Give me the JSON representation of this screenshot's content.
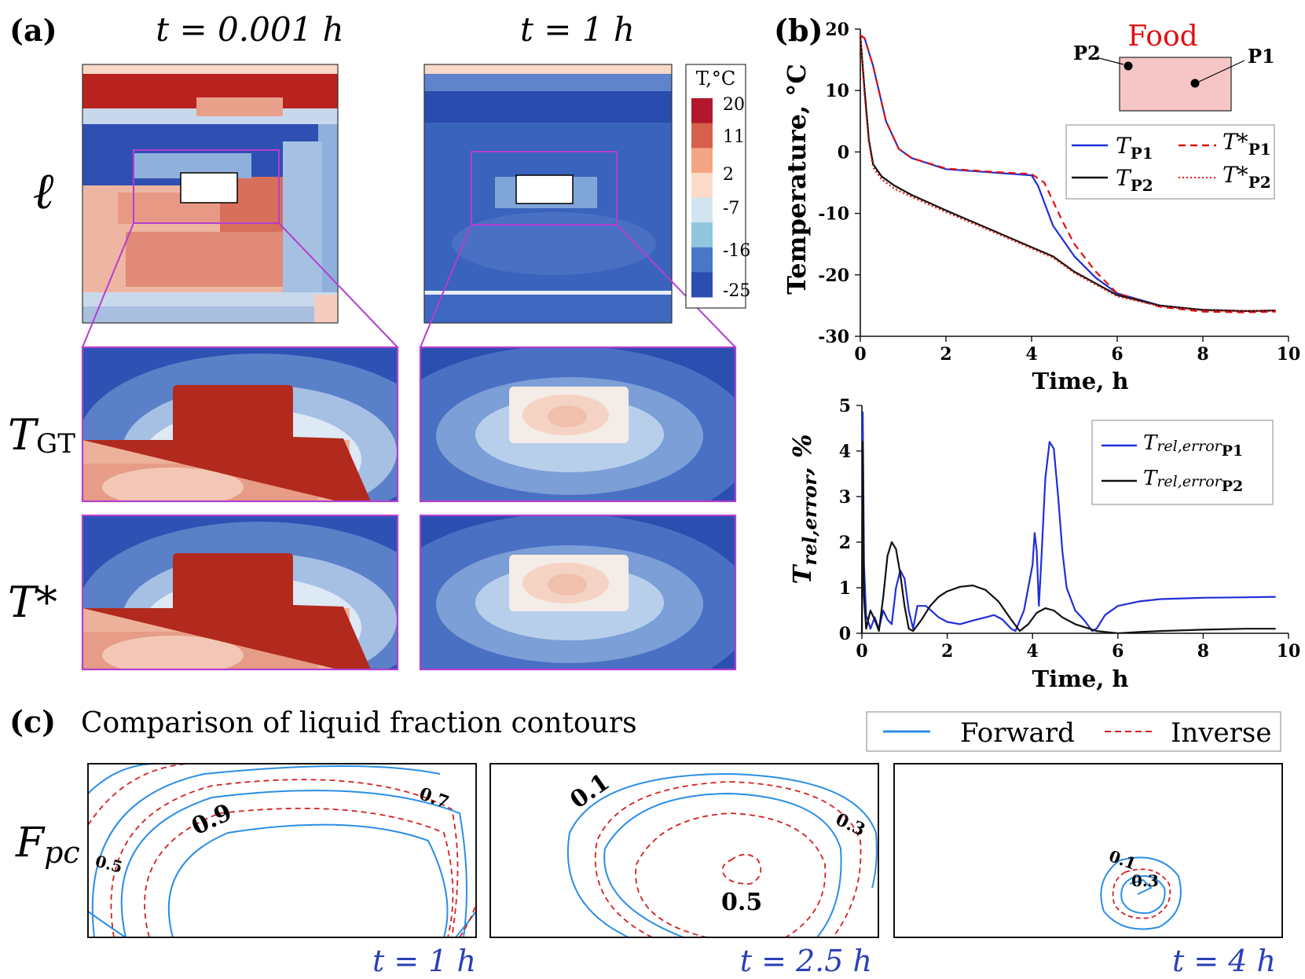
{
  "panel_a": {
    "label": "(a)",
    "time_labels": [
      "t = 0.001 h",
      "t = 1 h"
    ],
    "row_labels": {
      "liquid": "ℓ",
      "gt": "T",
      "gt_sub": "GT",
      "pred": "T*"
    },
    "colorbar": {
      "title": "T,°C",
      "ticks": [
        "20",
        "11",
        "2",
        "-7",
        "-16",
        "-25"
      ],
      "colors": [
        "#b2182b",
        "#d6604d",
        "#f4a582",
        "#fddbc7",
        "#d1e5f0",
        "#92c5de",
        "#4a77c9",
        "#2b4fb0"
      ]
    }
  },
  "panel_b": {
    "label": "(b)",
    "inset": {
      "title": "Food",
      "p1": "P1",
      "p2": "P2",
      "fill": "#f6c6c6"
    },
    "colors": {
      "p1": "#1f2fd8",
      "p2": "#111111",
      "pred": "#e01010"
    }
  },
  "panel_c": {
    "label": "(c)",
    "title": "Comparison of liquid fraction contours",
    "legend": {
      "forward": "Forward",
      "inverse": "Inverse"
    },
    "ylabel": "F",
    "ylabel_sub": "pc",
    "time_labels": [
      "t = 1 h",
      "t = 2.5 h",
      "t = 4 h"
    ],
    "contour_labels": [
      [
        "0.7",
        "0.9",
        "0.5"
      ],
      [
        "0.1",
        "0.3",
        "0.5"
      ],
      [
        "0.1",
        "0.3"
      ]
    ],
    "colors": {
      "forward": "#2b8ee6",
      "inverse": "#d42020"
    }
  },
  "chart_data": [
    {
      "type": "line",
      "ylabel": "Temperature, °C",
      "xlabel": "Time, h",
      "xlim": [
        0,
        10
      ],
      "ylim": [
        -30,
        20
      ],
      "xticks": [
        0,
        2,
        4,
        6,
        8,
        10
      ],
      "yticks": [
        20,
        10,
        0,
        -10,
        -20,
        -30
      ],
      "legend": [
        "T_P1",
        "T*_P1",
        "T_P2",
        "T*_P2"
      ],
      "legend_position": "top-right",
      "series": [
        {
          "name": "T_P1",
          "style": "solid",
          "color": "#1f2fd8",
          "x": [
            0,
            0.1,
            0.3,
            0.6,
            0.9,
            1.2,
            2,
            3,
            4,
            4.15,
            4.5,
            5,
            5.5,
            6,
            7,
            8,
            9,
            9.7
          ],
          "y": [
            19,
            18.5,
            14,
            5,
            0.5,
            -1,
            -2.8,
            -3.3,
            -3.8,
            -5.5,
            -12,
            -17,
            -20.5,
            -23,
            -25,
            -25.7,
            -25.9,
            -25.8
          ]
        },
        {
          "name": "T*_P1",
          "style": "dashed",
          "color": "#e01010",
          "x": [
            0,
            0.1,
            0.3,
            0.6,
            0.9,
            1.2,
            2,
            3,
            4,
            4.3,
            4.7,
            5,
            5.5,
            6,
            7,
            8,
            9,
            9.7
          ],
          "y": [
            19,
            18.5,
            14,
            5,
            0.5,
            -1,
            -2.7,
            -3.2,
            -3.6,
            -5,
            -11,
            -15,
            -19.5,
            -23,
            -25.2,
            -26,
            -26.1,
            -26
          ]
        },
        {
          "name": "T_P2",
          "style": "solid",
          "color": "#111111",
          "x": [
            0,
            0.1,
            0.2,
            0.3,
            0.5,
            0.8,
            1.2,
            2,
            3,
            4,
            4.5,
            5,
            6,
            7,
            8,
            9,
            9.7
          ],
          "y": [
            19,
            10,
            2,
            -2,
            -4,
            -5.5,
            -7,
            -9.5,
            -12.5,
            -15.5,
            -17,
            -19.5,
            -23.3,
            -25,
            -25.7,
            -25.9,
            -25.8
          ]
        },
        {
          "name": "T*_P2",
          "style": "dotted",
          "color": "#e01010",
          "x": [
            0,
            0.1,
            0.2,
            0.3,
            0.5,
            0.8,
            1.2,
            2,
            3,
            4,
            4.5,
            5,
            6,
            7,
            8,
            9,
            9.7
          ],
          "y": [
            19,
            9,
            1.5,
            -2.5,
            -4.5,
            -6,
            -7.3,
            -9.8,
            -12.7,
            -15.7,
            -17.2,
            -19.7,
            -23.5,
            -25.1,
            -25.8,
            -25.9,
            -25.8
          ]
        }
      ]
    },
    {
      "type": "line",
      "ylabel": "T_rel,error, %",
      "xlabel": "Time, h",
      "xlim": [
        0,
        10
      ],
      "ylim": [
        0,
        5
      ],
      "xticks": [
        0,
        2,
        4,
        6,
        8,
        10
      ],
      "yticks": [
        0,
        1,
        2,
        3,
        4,
        5
      ],
      "legend": [
        "T_rel,error P1",
        "T_rel,error P2"
      ],
      "legend_position": "top-right",
      "series": [
        {
          "name": "T_rel,error P1",
          "color": "#1f2fd8",
          "x": [
            0,
            0.02,
            0.05,
            0.1,
            0.2,
            0.3,
            0.4,
            0.5,
            0.6,
            0.7,
            0.8,
            0.9,
            1.0,
            1.1,
            1.2,
            1.3,
            1.5,
            1.8,
            2.0,
            2.3,
            2.6,
            2.9,
            3.1,
            3.3,
            3.5,
            3.6,
            3.8,
            4.0,
            4.05,
            4.1,
            4.15,
            4.2,
            4.3,
            4.4,
            4.5,
            4.6,
            4.7,
            4.8,
            5.0,
            5.2,
            5.4,
            5.5,
            5.7,
            6.0,
            6.5,
            7,
            8,
            9,
            9.7
          ],
          "y": [
            0,
            4.85,
            1.5,
            0.4,
            0.1,
            0.35,
            0.1,
            0.5,
            0.3,
            0.2,
            1.0,
            1.38,
            1.2,
            0.5,
            0.1,
            0.6,
            0.6,
            0.35,
            0.25,
            0.2,
            0.28,
            0.35,
            0.4,
            0.3,
            0.1,
            0.05,
            0.5,
            1.5,
            2.2,
            1.8,
            0.6,
            1.5,
            3.4,
            4.2,
            4.05,
            3.0,
            1.8,
            1.0,
            0.5,
            0.3,
            0.05,
            0.1,
            0.4,
            0.6,
            0.7,
            0.75,
            0.78,
            0.79,
            0.8
          ]
        },
        {
          "name": "T_rel,error P2",
          "color": "#111111",
          "x": [
            0,
            0.02,
            0.05,
            0.1,
            0.2,
            0.3,
            0.4,
            0.5,
            0.6,
            0.7,
            0.8,
            0.9,
            1.0,
            1.1,
            1.2,
            1.4,
            1.6,
            1.8,
            2.0,
            2.3,
            2.6,
            2.9,
            3.2,
            3.5,
            3.7,
            3.9,
            4.1,
            4.3,
            4.5,
            4.7,
            5.0,
            5.5,
            6.0,
            6.5,
            7,
            8,
            9,
            9.7
          ],
          "y": [
            0,
            4.2,
            0.8,
            0.1,
            0.5,
            0.3,
            0.05,
            0.8,
            1.7,
            2.0,
            1.85,
            1.3,
            0.6,
            0.1,
            0.05,
            0.3,
            0.6,
            0.8,
            0.92,
            1.02,
            1.05,
            0.95,
            0.7,
            0.3,
            0.05,
            0.2,
            0.45,
            0.55,
            0.5,
            0.35,
            0.2,
            0.05,
            0.0,
            0.03,
            0.05,
            0.08,
            0.1,
            0.1
          ]
        }
      ]
    }
  ]
}
